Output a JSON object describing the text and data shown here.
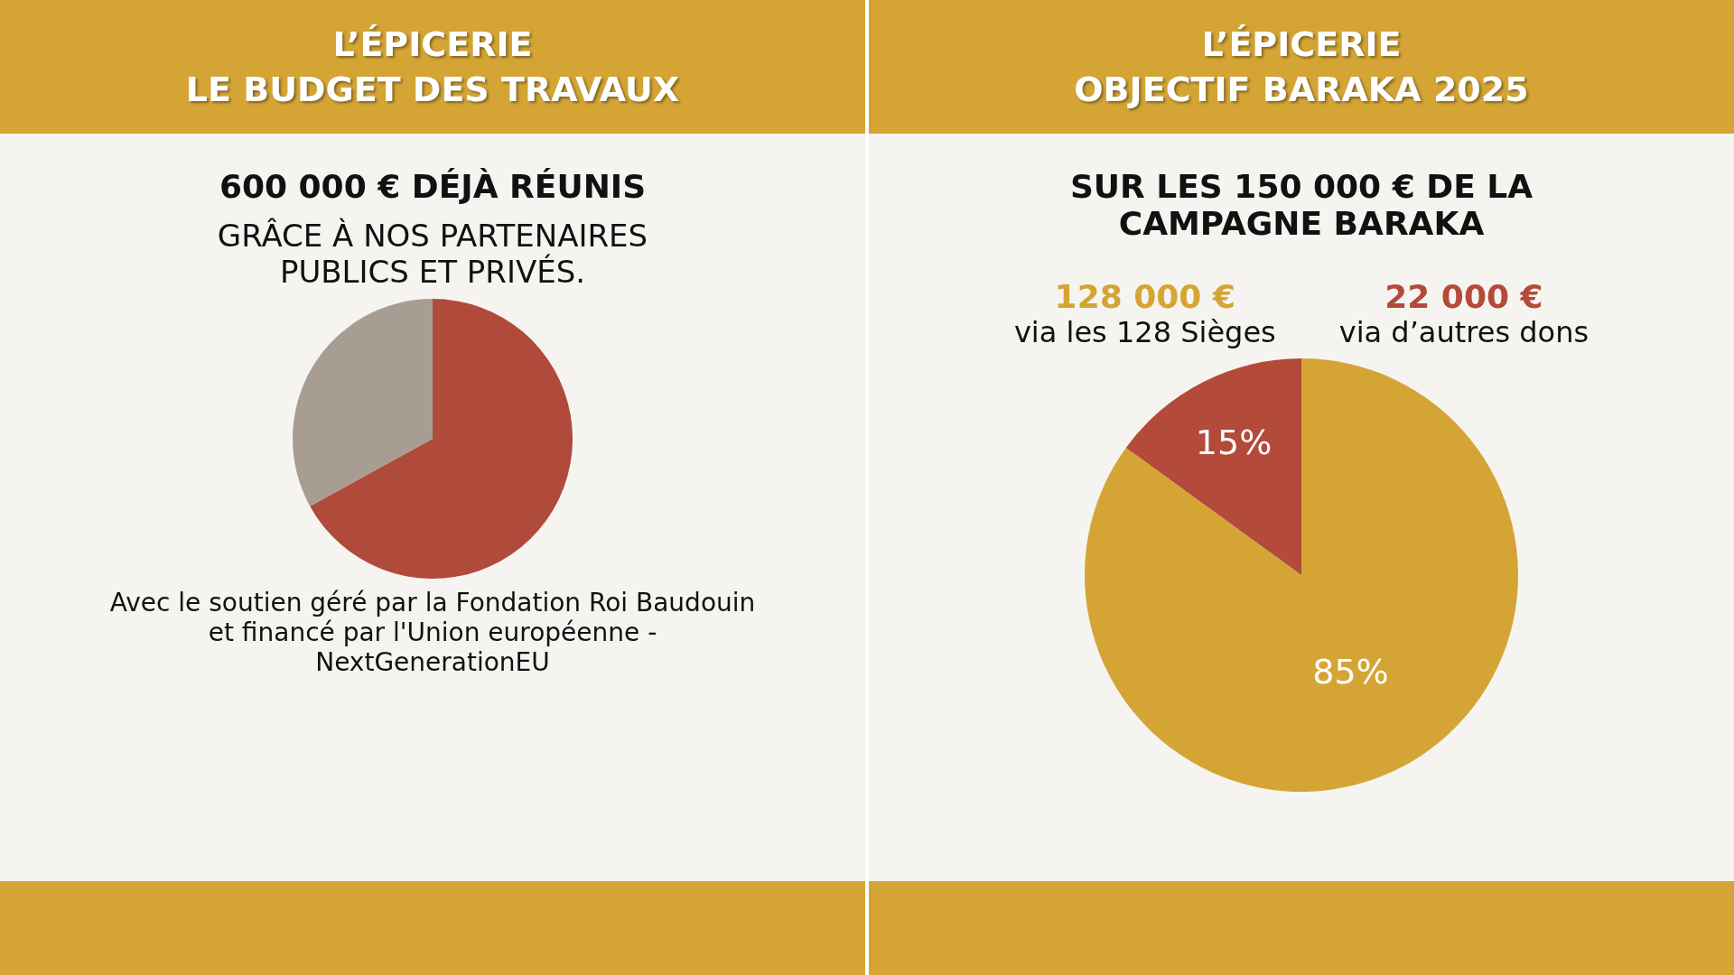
{
  "chart_data": [
    {
      "type": "pie",
      "title": "L’ÉPICERIE",
      "subtitle": "LE BUDGET DES TRAVAUX",
      "categories": [
        null,
        null
      ],
      "values": [
        67,
        33
      ],
      "colors": [
        "#b04a3b",
        "#a89d93"
      ],
      "legend": false,
      "annotations": [
        "600 000 € DÉJÀ RÉUNIS",
        "GRÂCE À NOS PARTENAIRES PUBLICS ET PRIVÉS.",
        "Avec le soutien géré par la Fondation Roi Baudouin et financé par l'Union européenne - NextGenerationEU"
      ]
    },
    {
      "type": "pie",
      "title": "L’ÉPICERIE",
      "subtitle": "OBJECTIF BARAKA 2025",
      "categories": [
        null,
        null
      ],
      "values": [
        85,
        15
      ],
      "colors": [
        "#d4a535",
        "#b34a3a"
      ],
      "value_labels": [
        "85%",
        "15%"
      ],
      "legend": false,
      "annotations": [
        "SUR LES 150 000 € DE LA CAMPAGNE BARAKA",
        "128 000 €",
        "via les 128 Sièges",
        "22 000 €",
        "via d’autres dons"
      ]
    }
  ]
}
